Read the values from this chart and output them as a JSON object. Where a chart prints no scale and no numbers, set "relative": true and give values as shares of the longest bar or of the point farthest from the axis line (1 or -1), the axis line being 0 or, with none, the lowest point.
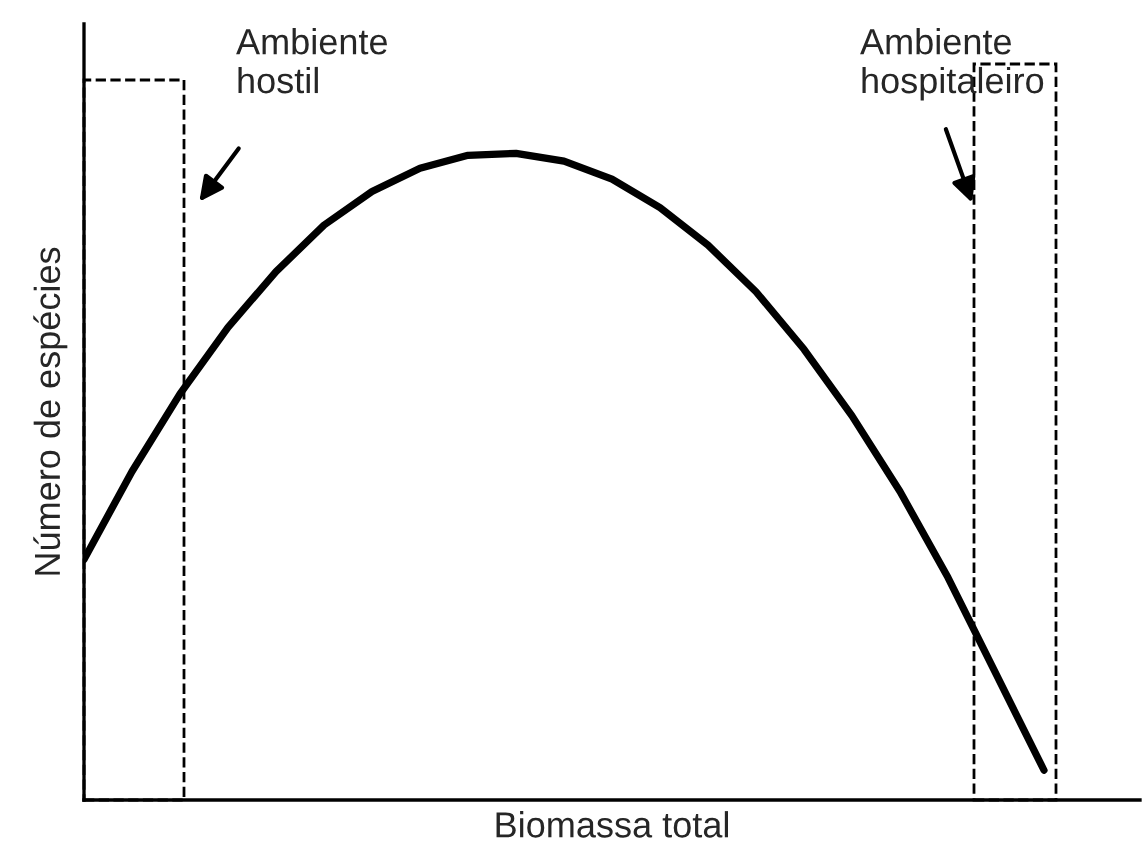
{
  "chart_data": {
    "type": "line",
    "xlabel": "Biomassa total",
    "ylabel": "Número de espécies",
    "relative": true,
    "line_style": "solid",
    "marker": "none",
    "grid": false,
    "legend": false,
    "tick_labels": false,
    "categories": [
      null,
      null,
      null,
      null,
      null,
      null,
      null,
      null,
      null,
      null,
      null,
      null,
      null,
      null,
      null,
      null,
      null,
      null,
      null,
      null,
      null,
      null,
      null
    ],
    "series": [
      {
        "color": "#000000",
        "values": [
          0.372,
          0.508,
          0.628,
          0.731,
          0.817,
          0.889,
          0.941,
          0.977,
          0.997,
          1.0,
          0.988,
          0.96,
          0.916,
          0.858,
          0.786,
          0.697,
          0.594,
          0.477,
          0.344,
          0.195,
          0.046,
          null,
          null
        ]
      }
    ],
    "annotations": [
      "Ambiente\nhostil",
      "Ambiente\nhospitaleiro"
    ]
  }
}
